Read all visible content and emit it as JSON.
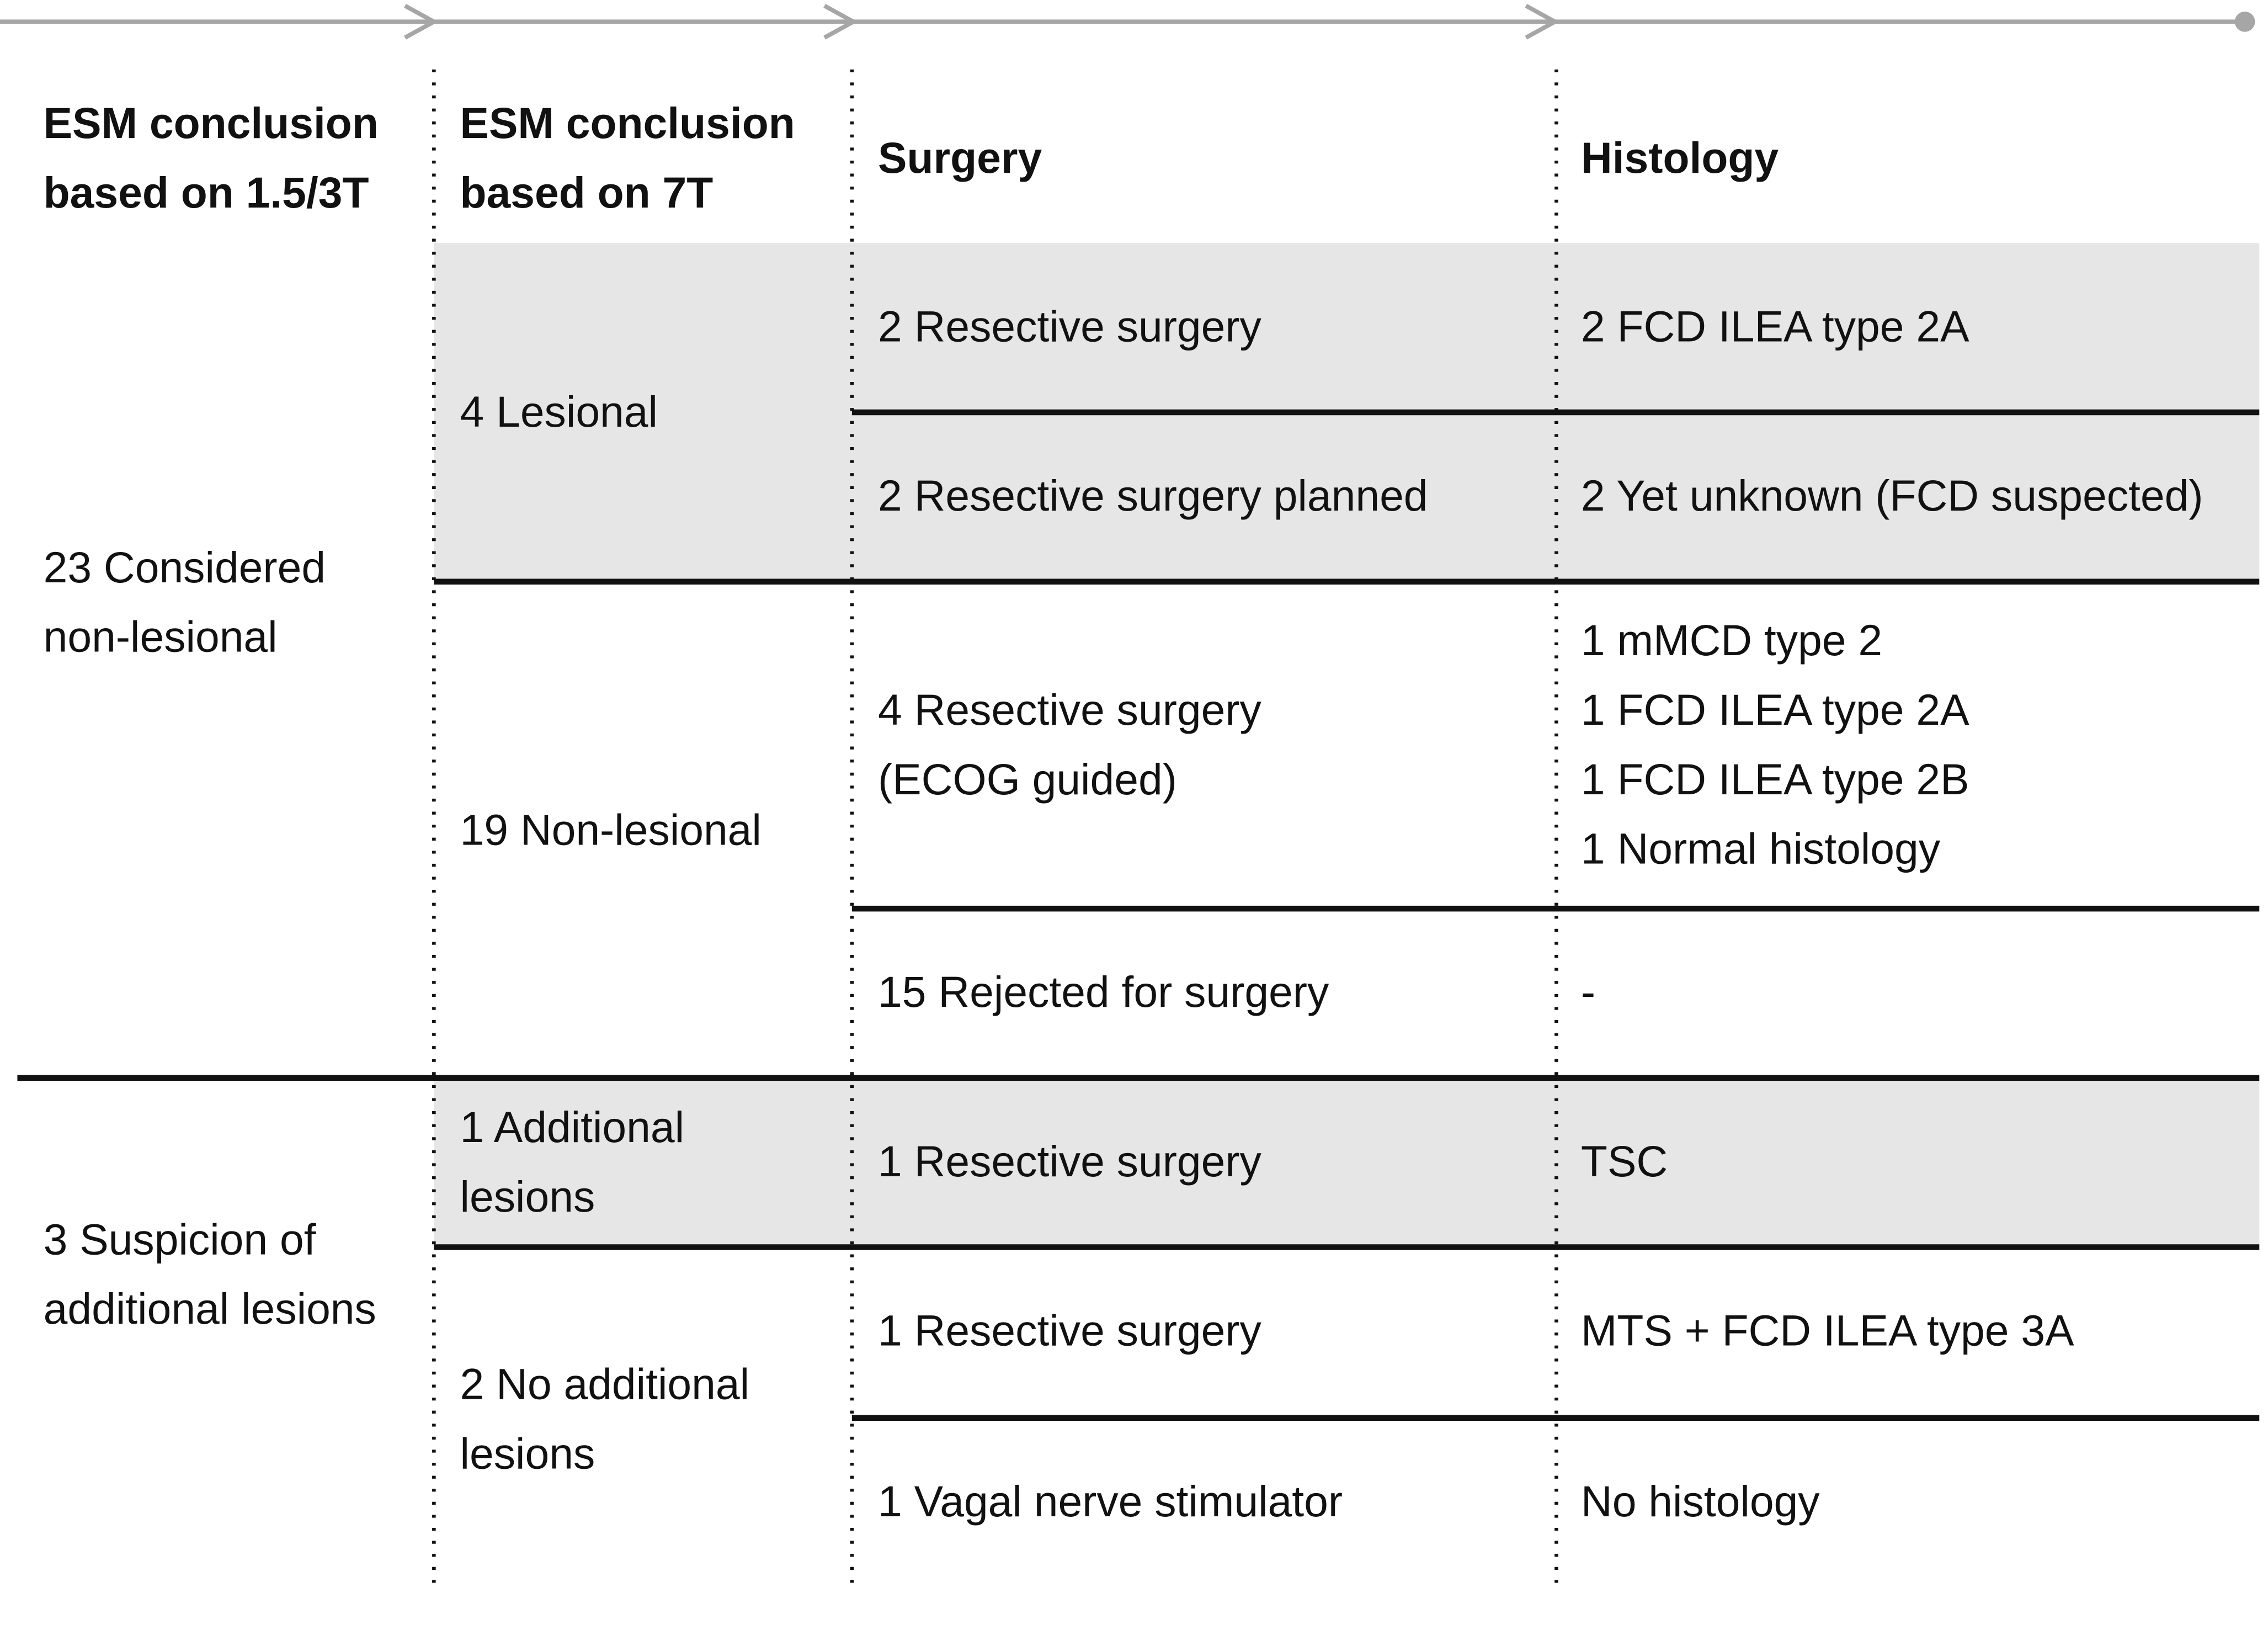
{
  "header": {
    "columns": [
      [
        "ESM conclusion",
        "based on 1.5/3T"
      ],
      [
        "ESM conclusion",
        "based on 7T"
      ],
      [
        "Surgery"
      ],
      [
        "Histology"
      ]
    ]
  },
  "baseline": [
    [
      "23 Considered",
      "non-lesional"
    ],
    [
      "3 Suspicion of",
      "additional lesions"
    ]
  ],
  "mri_7t": [
    [
      "4 Lesional"
    ],
    [
      "19 Non-lesional"
    ],
    [
      "1 Additional",
      "lesions"
    ],
    [
      "2 No additional",
      "lesions"
    ]
  ],
  "rows": [
    {
      "surgery": [
        "2 Resective surgery"
      ],
      "histology": [
        "2 FCD ILEA type 2A"
      ]
    },
    {
      "surgery": [
        "2 Resective surgery planned"
      ],
      "histology": [
        "2 Yet unknown (FCD suspected)"
      ]
    },
    {
      "surgery": [
        "4 Resective surgery",
        "(ECOG guided)"
      ],
      "histology": [
        "1 mMCD type 2",
        "1 FCD ILEA type 2A",
        "1 FCD ILEA type 2B",
        "1 Normal histology"
      ]
    },
    {
      "surgery": [
        "15 Rejected for surgery"
      ],
      "histology": [
        "-"
      ]
    },
    {
      "surgery": [
        "1 Resective surgery"
      ],
      "histology": [
        "TSC"
      ]
    },
    {
      "surgery": [
        "1 Resective surgery"
      ],
      "histology": [
        "MTS + FCD ILEA type 3A"
      ]
    },
    {
      "surgery": [
        "1 Vagal nerve stimulator"
      ],
      "histology": [
        "No histology"
      ]
    }
  ]
}
